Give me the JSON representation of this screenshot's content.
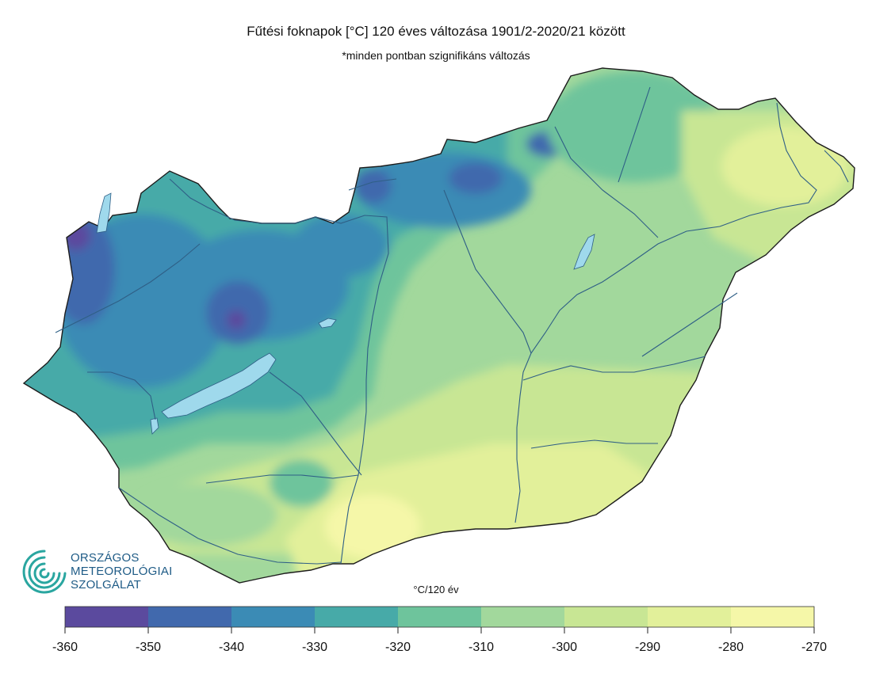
{
  "title": "Fűtési foknapok [°C] 120 éves változása 1901/2-2020/21 között",
  "subtitle": "*minden pontban szignifikáns változás",
  "unit_label": "°C/120 év",
  "logo": {
    "icon": "omsz-spiral-logo",
    "lines": [
      "ORSZÁGOS",
      "METEOROLÓGIAI",
      "SZOLGÁLAT"
    ],
    "color": "#1e5b86"
  },
  "legend": {
    "ticks": [
      "-360",
      "-350",
      "-340",
      "-330",
      "-320",
      "-310",
      "-300",
      "-290",
      "-280",
      "-270"
    ],
    "bins": [
      {
        "from": -360,
        "to": -350,
        "color": "#5b4a9e"
      },
      {
        "from": -350,
        "to": -340,
        "color": "#4169ad"
      },
      {
        "from": -340,
        "to": -330,
        "color": "#3b8bb5"
      },
      {
        "from": -330,
        "to": -320,
        "color": "#47aaa8"
      },
      {
        "from": -320,
        "to": -310,
        "color": "#6ec49c"
      },
      {
        "from": -310,
        "to": -300,
        "color": "#a2d89c"
      },
      {
        "from": -300,
        "to": -290,
        "color": "#c8e694"
      },
      {
        "from": -290,
        "to": -280,
        "color": "#e2f09a"
      },
      {
        "from": -280,
        "to": -270,
        "color": "#f5f7a8"
      }
    ]
  },
  "water_color": "#9fd9ec",
  "river_color": "#2f5f86"
}
